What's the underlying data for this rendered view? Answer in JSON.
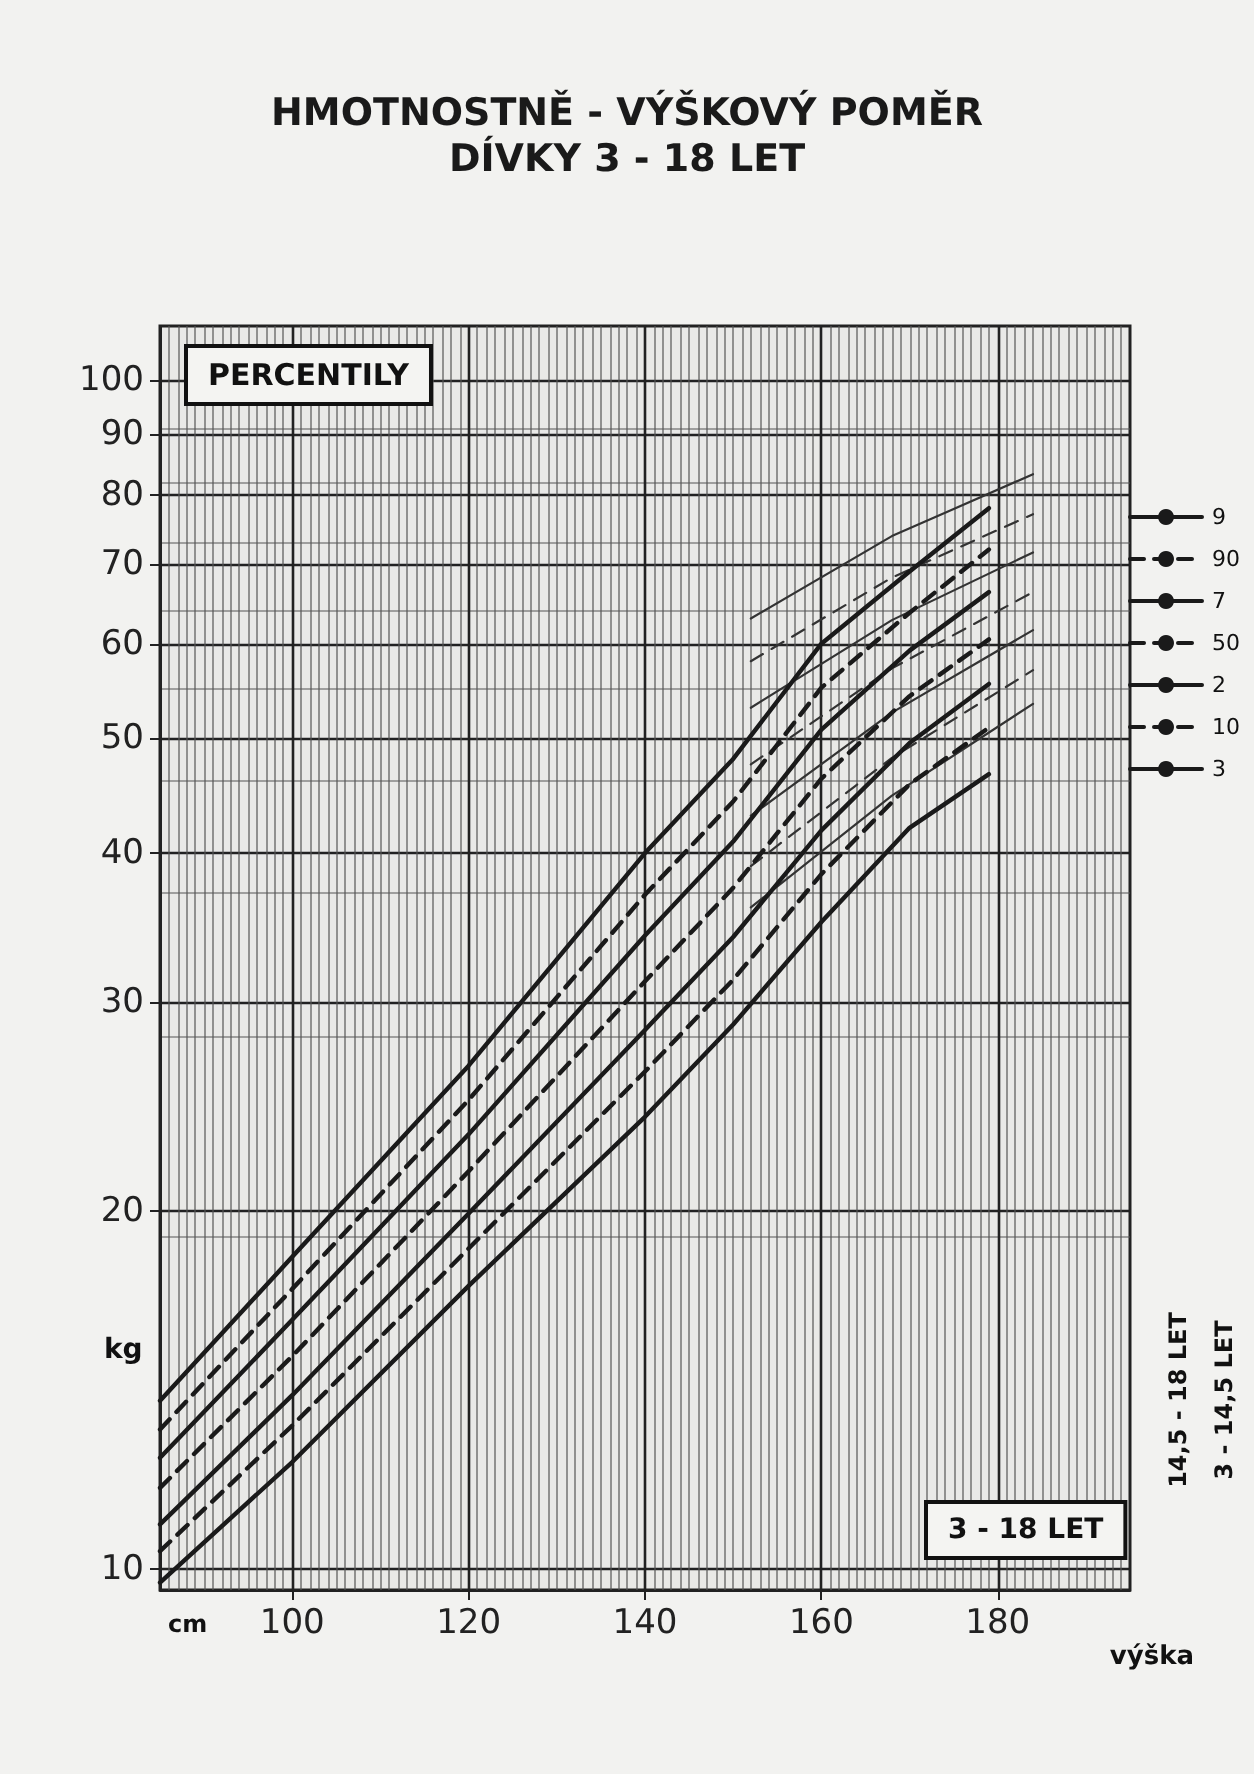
{
  "chart_data": {
    "type": "line",
    "title": "HMOTNOSTNĚ - VÝŠKOVÝ POMĚR",
    "subtitle": "DÍVKY 3 - 18 LET",
    "xlabel": "výška",
    "ylabel": "kg",
    "annotations": [
      "PERCENTILY",
      "3 - 18 LET",
      "14,5 - 18 LET",
      "3 - 14,5 LET",
      "cm"
    ],
    "log": "y",
    "grid": true,
    "legend": "right",
    "xlim": [
      85,
      195
    ],
    "xticks": [
      100,
      120,
      140,
      160,
      180
    ],
    "ylim": [
      9.6,
      111
    ],
    "yticks": [
      10,
      20,
      30,
      40,
      50,
      60,
      70,
      80,
      90,
      100
    ],
    "series": [
      {
        "name": "9",
        "color": "#1a1a1a",
        "line_style": "solid",
        "x": [
          85,
          100,
          120,
          140,
          150,
          160,
          170,
          179
        ],
        "values": [
          13.85,
          18.3,
          26.5,
          40,
          48,
          60,
          69,
          78
        ]
      },
      {
        "name": "90",
        "color": "#1a1a1a",
        "line_style": "dashed",
        "x": [
          85,
          100,
          120,
          140,
          150,
          160,
          170,
          179
        ],
        "values": [
          13.1,
          17.2,
          24.8,
          36.9,
          44.2,
          55.1,
          63.7,
          72
        ]
      },
      {
        "name": "7",
        "color": "#1a1a1a",
        "line_style": "solid",
        "x": [
          85,
          100,
          120,
          140,
          150,
          160,
          170,
          179
        ],
        "values": [
          12.4,
          16.2,
          23.2,
          34.1,
          40.9,
          50.8,
          59.2,
          66.3
        ]
      },
      {
        "name": "50",
        "color": "#1a1a1a",
        "line_style": "dashed",
        "x": [
          85,
          100,
          120,
          140,
          150,
          160,
          170,
          179
        ],
        "values": [
          11.7,
          15.1,
          21.6,
          31.2,
          37.4,
          46.2,
          54.2,
          60.5
        ]
      },
      {
        "name": "2",
        "color": "#1a1a1a",
        "line_style": "solid",
        "x": [
          85,
          100,
          120,
          140,
          150,
          160,
          170,
          179
        ],
        "values": [
          10.9,
          14,
          19.9,
          28.4,
          34,
          41.8,
          49.5,
          55.5
        ]
      },
      {
        "name": "10",
        "color": "#1a1a1a",
        "line_style": "dashed",
        "x": [
          85,
          100,
          120,
          140,
          150,
          160,
          170,
          179
        ],
        "values": [
          10.35,
          13.2,
          18.6,
          26.2,
          31.3,
          38.4,
          45.7,
          51
        ]
      },
      {
        "name": "3",
        "color": "#1a1a1a",
        "line_style": "solid",
        "x": [
          85,
          100,
          120,
          140,
          150,
          160,
          170,
          179
        ],
        "values": [
          9.74,
          12.3,
          17.3,
          24,
          28.7,
          35,
          42,
          46.6
        ]
      },
      {
        "color": "#333333",
        "line_style": "solid",
        "x": [
          152,
          168,
          184
        ],
        "values": [
          63,
          73.9,
          83.3
        ]
      },
      {
        "color": "#333333",
        "line_style": "dashed",
        "x": [
          152,
          168,
          184
        ],
        "values": [
          58,
          68.2,
          77.1
        ]
      },
      {
        "color": "#333333",
        "line_style": "solid",
        "x": [
          152,
          168,
          184
        ],
        "values": [
          53,
          62.8,
          71.6
        ]
      },
      {
        "color": "#333333",
        "line_style": "dashed",
        "x": [
          152,
          168,
          184
        ],
        "values": [
          47.5,
          57.2,
          66.3
        ]
      },
      {
        "color": "#333333",
        "line_style": "solid",
        "x": [
          152,
          168,
          184
        ],
        "values": [
          43,
          52.5,
          61.6
        ]
      },
      {
        "color": "#333333",
        "line_style": "dashed",
        "x": [
          152,
          168,
          184
        ],
        "values": [
          39,
          48.1,
          57
        ]
      },
      {
        "color": "#333333",
        "line_style": "solid",
        "x": [
          152,
          168,
          184
        ],
        "values": [
          36,
          44.7,
          53.4
        ]
      }
    ]
  }
}
